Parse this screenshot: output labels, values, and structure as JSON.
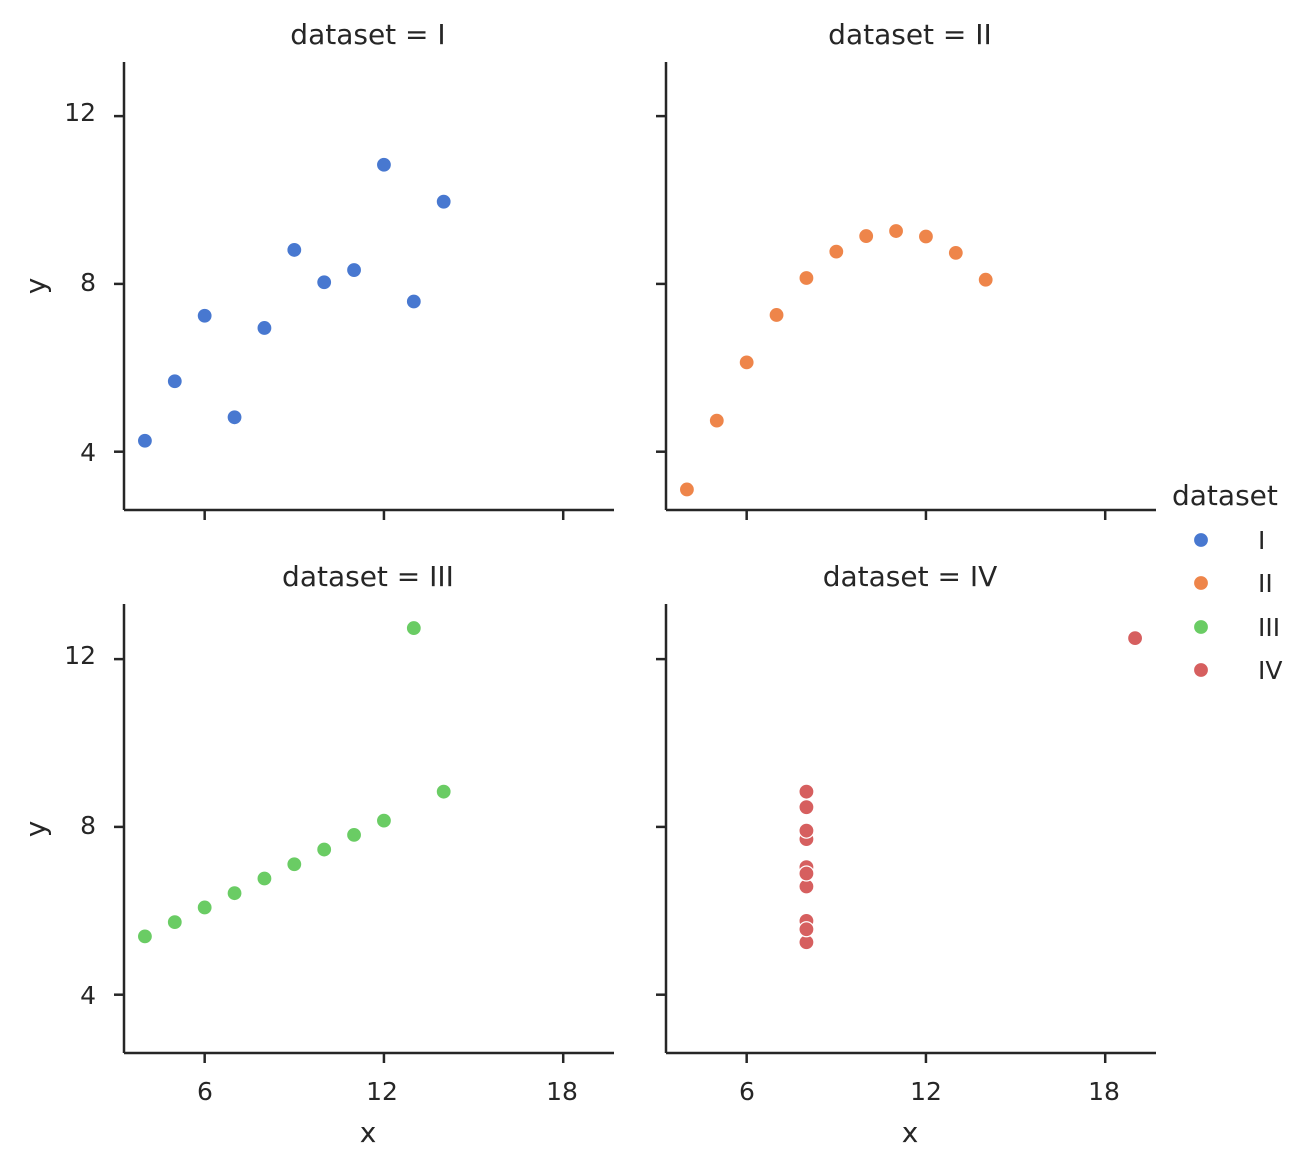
{
  "chart_data": {
    "type": "scatter",
    "facet_variable": "dataset",
    "xlabel": "x",
    "ylabel": "y",
    "xlim": [
      3.3,
      19.7
    ],
    "ylim": [
      2.61,
      13.29
    ],
    "xticks": [
      6,
      12,
      18
    ],
    "yticks": [
      4,
      8,
      12
    ],
    "xtick_labels": [
      "6",
      "12",
      "18"
    ],
    "ytick_labels": [
      "4",
      "8",
      "12"
    ],
    "grid": false,
    "legend": {
      "title": "dataset",
      "placement": "right",
      "entries": [
        {
          "label": "I",
          "color": "#4878d0"
        },
        {
          "label": "II",
          "color": "#ee854a"
        },
        {
          "label": "III",
          "color": "#6acc64"
        },
        {
          "label": "IV",
          "color": "#d65f5f"
        }
      ]
    },
    "panels": [
      {
        "title": "dataset = I",
        "series": "I",
        "color": "#4878d0",
        "x": [
          10,
          8,
          13,
          9,
          11,
          14,
          6,
          4,
          12,
          7,
          5
        ],
        "y": [
          8.04,
          6.95,
          7.58,
          8.81,
          8.33,
          9.96,
          7.24,
          4.26,
          10.84,
          4.82,
          5.68
        ]
      },
      {
        "title": "dataset = II",
        "series": "II",
        "color": "#ee854a",
        "x": [
          10,
          8,
          13,
          9,
          11,
          14,
          6,
          4,
          12,
          7,
          5
        ],
        "y": [
          9.14,
          8.14,
          8.74,
          8.77,
          9.26,
          8.1,
          6.13,
          3.1,
          9.13,
          7.26,
          4.74
        ]
      },
      {
        "title": "dataset = III",
        "series": "III",
        "color": "#6acc64",
        "x": [
          10,
          8,
          13,
          9,
          11,
          14,
          6,
          4,
          12,
          7,
          5
        ],
        "y": [
          7.46,
          6.77,
          12.74,
          7.11,
          7.81,
          8.84,
          6.08,
          5.39,
          8.15,
          6.42,
          5.73
        ]
      },
      {
        "title": "dataset = IV",
        "series": "IV",
        "color": "#d65f5f",
        "x": [
          8,
          8,
          8,
          8,
          8,
          8,
          8,
          19,
          8,
          8,
          8
        ],
        "y": [
          6.58,
          5.76,
          7.71,
          8.84,
          8.47,
          7.04,
          5.25,
          12.5,
          5.56,
          7.91,
          6.89
        ]
      }
    ]
  }
}
